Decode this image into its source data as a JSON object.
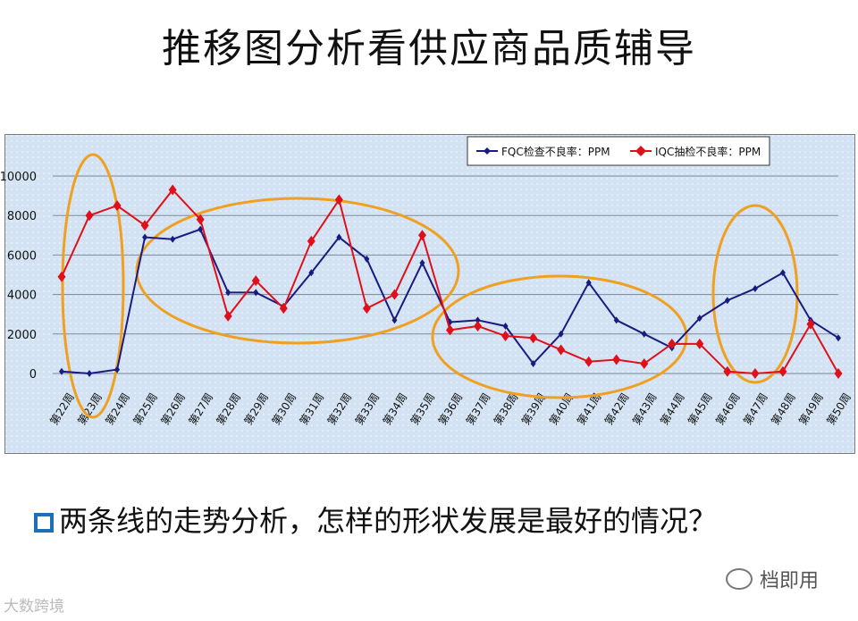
{
  "slide": {
    "title": "推移图分析看供应商品质辅导",
    "bullet_text": "两条线的走势分析，怎样的形状发展是最好的情况？",
    "watermark_right": "档即用",
    "watermark_left": "大数跨境"
  },
  "colors": {
    "fqc": "#1a1a80",
    "iqc": "#e0101a",
    "ellipse": "#f0a020",
    "plot_bg": "#d3e3f3",
    "bullet_box": "#1f6fb8"
  },
  "chart_data": {
    "type": "line",
    "ylim": [
      0,
      10000
    ],
    "yticks": [
      0,
      2000,
      4000,
      6000,
      8000,
      10000
    ],
    "grid": true,
    "legend_position": "top-right",
    "categories": [
      "第22周",
      "第23周",
      "第24周",
      "第25周",
      "第26周",
      "第27周",
      "第28周",
      "第29周",
      "第30周",
      "第31周",
      "第32周",
      "第33周",
      "第34周",
      "第35周",
      "第36周",
      "第37周",
      "第38周",
      "第39周",
      "第40周",
      "第41周",
      "第42周",
      "第43周",
      "第44周",
      "第45周",
      "第46周",
      "第47周",
      "第48周",
      "第49周",
      "第50周"
    ],
    "series": [
      {
        "name": "FQC检查不良率：PPM",
        "values": [
          100,
          0,
          200,
          6900,
          6800,
          7300,
          4100,
          4100,
          3400,
          5100,
          6900,
          5800,
          2700,
          5600,
          2600,
          2700,
          2400,
          500,
          2000,
          4600,
          2700,
          2000,
          1300,
          2800,
          3700,
          4300,
          5100,
          2700,
          1800
        ]
      },
      {
        "name": "IQC抽检不良率：PPM",
        "values": [
          4900,
          8000,
          8500,
          7500,
          9300,
          7800,
          2900,
          4700,
          3300,
          6700,
          8800,
          3300,
          4000,
          7000,
          2200,
          2400,
          1900,
          1800,
          1200,
          600,
          700,
          500,
          1500,
          1500,
          100,
          0,
          100,
          2500,
          0
        ]
      }
    ]
  }
}
